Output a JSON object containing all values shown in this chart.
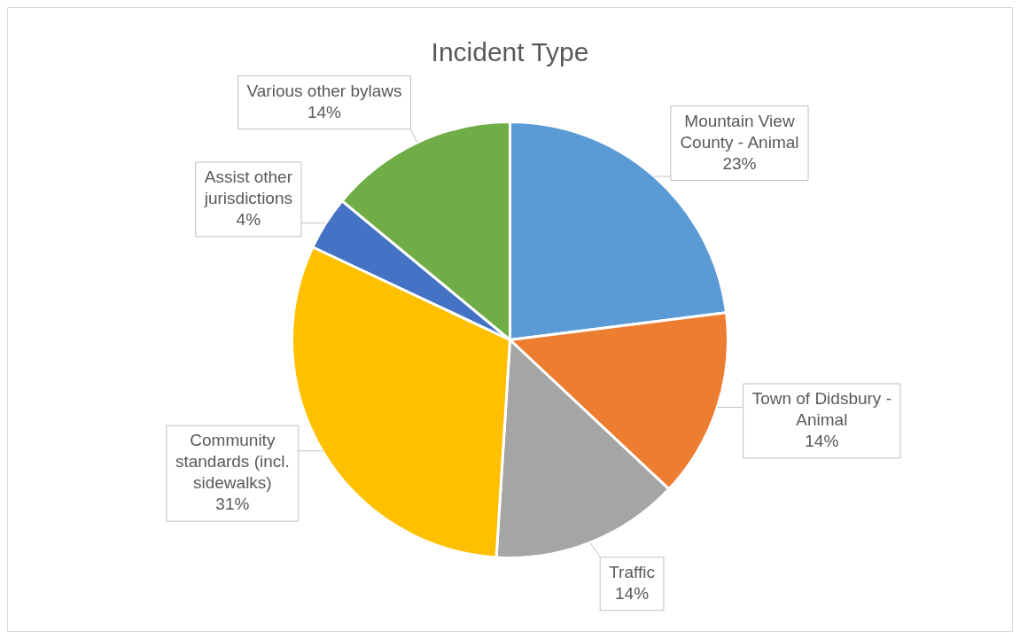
{
  "chart_data": {
    "type": "pie",
    "title": "Incident Type",
    "categories": [
      "Mountain View County - Animal",
      "Town of Didsbury - Animal",
      "Traffic",
      "Community standards (incl. sidewalks)",
      "Assist other jurisdictions",
      "Various other bylaws"
    ],
    "values": [
      23,
      14,
      14,
      31,
      4,
      14
    ],
    "colors": [
      "#5b9bd5",
      "#ed7d31",
      "#a5a5a5",
      "#ffc000",
      "#4472c4",
      "#70ad47"
    ],
    "value_labels": [
      "23%",
      "14%",
      "14%",
      "31%",
      "4%",
      "14%"
    ],
    "legend": false
  }
}
